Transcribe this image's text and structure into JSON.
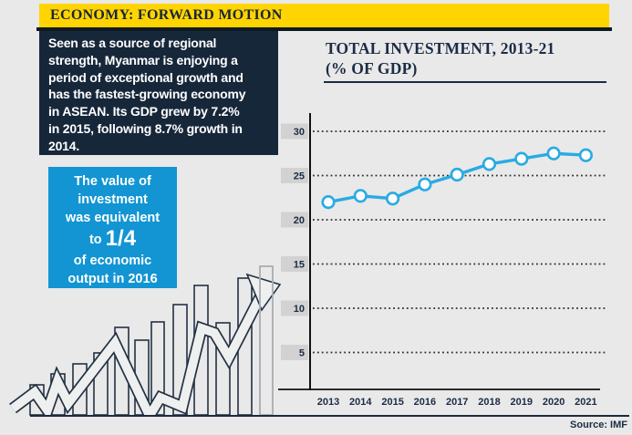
{
  "header": {
    "title": "ECONOMY: FORWARD MOTION"
  },
  "intro": {
    "text": "Seen as a source of regional\nstrength, Myanmar is enjoying a\nperiod of exceptional growth and\nhas the fastest-growing economy\nin ASEAN. Its GDP grew by 7.2%\nin 2015, following 8.7% growth in\n2014."
  },
  "highlight": {
    "lines_top": "The value of\ninvestment\nwas equivalent",
    "to_word": "to ",
    "fraction": "1/4",
    "lines_bottom": "of economic\noutput in 2016"
  },
  "chart": {
    "title_line1": "TOTAL INVESTMENT, 2013-21",
    "title_line2": "(% OF GDP)"
  },
  "source": {
    "label": "Source: IMF"
  },
  "colors": {
    "background": "#e9e9e9",
    "banner_yellow": "#ffd400",
    "navy": "#17273a",
    "highlight_blue": "#1295d2",
    "line_blue": "#29abe2",
    "tick_box_gray": "#d2d2d2",
    "text_navy": "#1b2c42"
  },
  "chart_data": {
    "type": "line",
    "title": "TOTAL INVESTMENT, 2013-21 (% OF GDP)",
    "xlabel": "",
    "ylabel": "% of GDP",
    "categories": [
      "2013",
      "2014",
      "2015",
      "2016",
      "2017",
      "2018",
      "2019",
      "2020",
      "2021"
    ],
    "series": [
      {
        "name": "Total investment (% of GDP)",
        "values": [
          22.0,
          22.7,
          22.4,
          24.0,
          25.1,
          26.3,
          26.9,
          27.5,
          27.3
        ]
      }
    ],
    "yticks": [
      5,
      10,
      15,
      20,
      25,
      30
    ],
    "ylim": [
      0,
      32
    ],
    "grid": "dotted-horizontal",
    "legend": "none",
    "marker": "open-circle",
    "line_color": "#29abe2"
  }
}
